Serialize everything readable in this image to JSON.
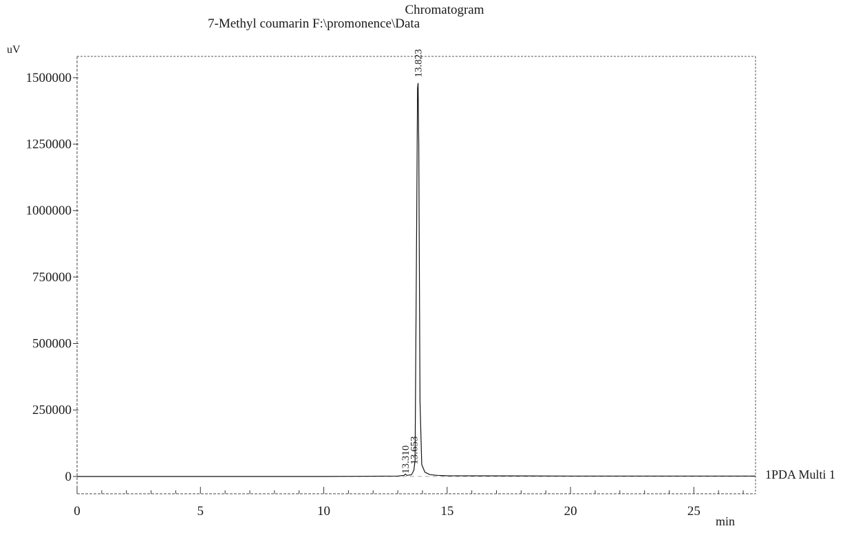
{
  "chart_data": {
    "type": "line",
    "title": "Chromatogram",
    "subtitle": "7-Methyl coumarin F:\\promonence\\Data",
    "ylabel": "uV",
    "xlabel": "min",
    "xlim": [
      0,
      27.5
    ],
    "ylim": [
      -65000,
      1580000
    ],
    "x_ticks": [
      0,
      5,
      10,
      15,
      20,
      25
    ],
    "y_ticks": [
      0,
      250000,
      500000,
      750000,
      1000000,
      1250000,
      1500000
    ],
    "y_tick_labels": [
      "0",
      "250000",
      "500000",
      "750000",
      "1000000",
      "1250000",
      "1500000"
    ],
    "grid": false,
    "series": [
      {
        "name": "1PDA Multi 1",
        "x": [
          0,
          5,
          10,
          13.0,
          13.25,
          13.31,
          13.37,
          13.55,
          13.6,
          13.653,
          13.7,
          13.76,
          13.8,
          13.823,
          13.85,
          13.9,
          13.97,
          14.1,
          14.3,
          14.6,
          15,
          20,
          25,
          27.5
        ],
        "y": [
          0,
          0,
          0,
          1500,
          4000,
          9000,
          4000,
          6000,
          14000,
          24000,
          60000,
          900000,
          1460000,
          1480000,
          1250000,
          280000,
          45000,
          16000,
          7000,
          4000,
          2500,
          1500,
          1500,
          1500
        ]
      }
    ],
    "peaks": [
      {
        "rt": 13.31,
        "label": "13.310"
      },
      {
        "rt": 13.653,
        "label": "13.653"
      },
      {
        "rt": 13.823,
        "label": "13.823"
      }
    ]
  }
}
